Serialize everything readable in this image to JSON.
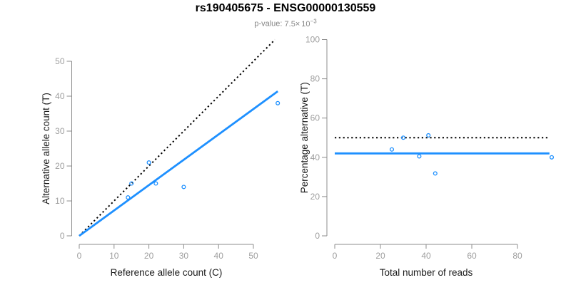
{
  "header": {
    "title": "rs190405675 - ENSG00000130559",
    "p_label": "p-value:",
    "p_mantissa": "7.5",
    "p_times": "×",
    "p_base": "10",
    "p_exponent": "−3"
  },
  "colors": {
    "accent_blue": "#1E90FF",
    "dotted_black": "#000000",
    "axis_gray": "#8C8C8C",
    "tick_label_gray": "#9E9E9E",
    "label_black": "#1A1A1A"
  },
  "chart_data": [
    {
      "type": "scatter",
      "name": "allele-count-scatter",
      "title": "",
      "xlabel": "Reference allele count (C)",
      "ylabel": "Alternative allele count (T)",
      "xticks": [
        0,
        10,
        20,
        30,
        40,
        50
      ],
      "yticks": [
        0,
        10,
        20,
        30,
        40,
        50
      ],
      "xlim": [
        0,
        57
      ],
      "ylim": [
        0,
        57
      ],
      "grid": false,
      "legend": "none",
      "points": [
        [
          14,
          11
        ],
        [
          15,
          15
        ],
        [
          20,
          21
        ],
        [
          22,
          15
        ],
        [
          30,
          14
        ],
        [
          57,
          38
        ]
      ],
      "lines": [
        {
          "name": "identity-line",
          "style": "dotted",
          "color": "#000000",
          "x1": 0,
          "y1": 0,
          "x2": 56.2,
          "y2": 56.2
        },
        {
          "name": "fit-line",
          "style": "solid",
          "color": "#1E90FF",
          "x1": 0,
          "y1": 0,
          "x2": 57,
          "y2": 41.4
        }
      ]
    },
    {
      "type": "scatter",
      "name": "percentage-alternative-scatter",
      "title": "",
      "xlabel": "Total number of reads",
      "ylabel": "Percentage alternative (T)",
      "xticks": [
        0,
        20,
        40,
        60,
        80
      ],
      "yticks": [
        0,
        20,
        40,
        60,
        80,
        100
      ],
      "xlim": [
        0,
        95
      ],
      "ylim": [
        0,
        100
      ],
      "grid": false,
      "legend": "none",
      "points": [
        [
          25,
          44
        ],
        [
          30,
          50
        ],
        [
          41,
          51.2
        ],
        [
          37,
          40.5
        ],
        [
          44,
          31.8
        ],
        [
          95,
          40
        ]
      ],
      "lines": [
        {
          "name": "expected-50-percent-line",
          "style": "dotted",
          "color": "#000000",
          "x1": 0,
          "y1": 50,
          "x2": 94,
          "y2": 50
        },
        {
          "name": "observed-percent-line",
          "style": "solid",
          "color": "#1E90FF",
          "x1": 0,
          "y1": 42,
          "x2": 94,
          "y2": 42
        }
      ]
    }
  ]
}
